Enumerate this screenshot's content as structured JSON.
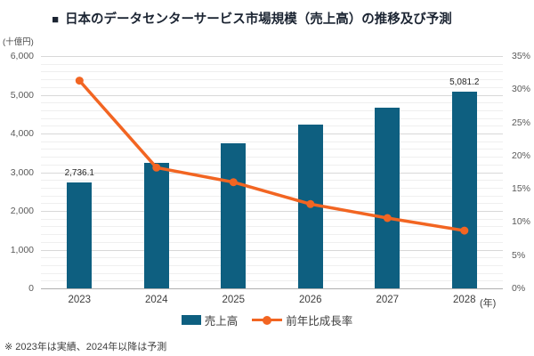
{
  "title": {
    "marker": "■",
    "text": "日本のデータセンターサービス市場規模（売上高）の推移及び予測"
  },
  "footer": {
    "note": "※ 2023年は実績、2024年以降は予測"
  },
  "colors": {
    "bar": "#0e5f80",
    "line": "#f26522",
    "grid_minor": "#efefef",
    "grid_major": "#d8d8d8",
    "axis_base": "#b0b0b0",
    "title_text": "#1b2432"
  },
  "chart_data": {
    "type": "combo",
    "title": "日本のデータセンターサービス市場規模（売上高）の推移及び予測",
    "categories": [
      "2023",
      "2024",
      "2025",
      "2026",
      "2027",
      "2028"
    ],
    "x_axis_suffix": "(年)",
    "series": [
      {
        "name": "売上高",
        "type": "bar",
        "axis": "left",
        "color": "#0e5f80",
        "values": [
          2736.1,
          3234,
          3751,
          4228,
          4676,
          5081.2
        ]
      },
      {
        "name": "前年比成長率",
        "type": "line",
        "axis": "right",
        "color": "#f26522",
        "values": [
          31.3,
          18.2,
          16.0,
          12.7,
          10.6,
          8.7
        ]
      }
    ],
    "value_labels": [
      "2,736.1",
      null,
      null,
      null,
      null,
      "5,081.2"
    ],
    "left_axis": {
      "unit": "(十億円)",
      "min": 0,
      "max": 6000,
      "tick_step": 1000,
      "minor_step": 200,
      "ticks": [
        "0",
        "1,000",
        "2,000",
        "3,000",
        "4,000",
        "5,000",
        "6,000"
      ]
    },
    "right_axis": {
      "min": 0,
      "max": 35,
      "tick_step": 5,
      "ticks": [
        "0%",
        "5%",
        "10%",
        "15%",
        "20%",
        "25%",
        "30%",
        "35%"
      ]
    },
    "grid": "horizontal",
    "legend_position": "bottom"
  }
}
